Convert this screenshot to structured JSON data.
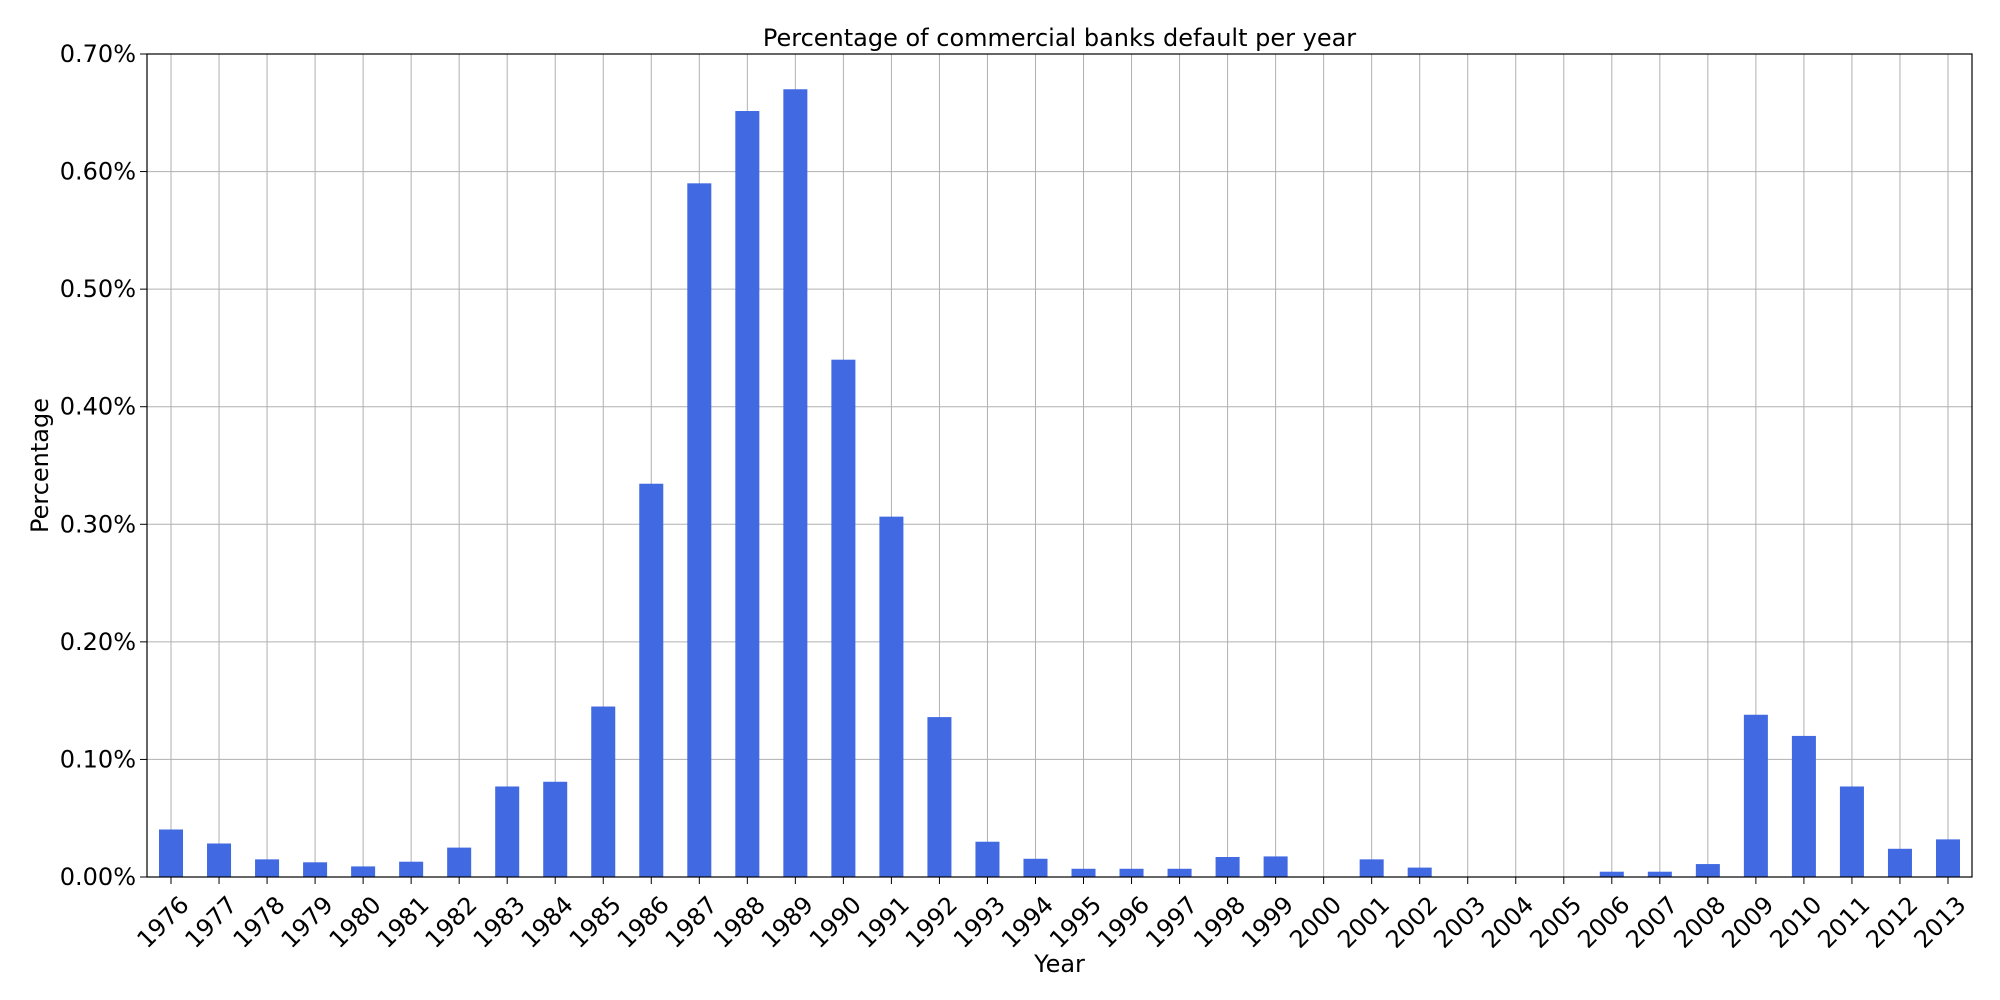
{
  "chart_data": {
    "type": "bar",
    "title": "Percentage of commercial banks default per year",
    "xlabel": "Year",
    "ylabel": "Percentage",
    "categories": [
      "1976",
      "1977",
      "1978",
      "1979",
      "1980",
      "1981",
      "1982",
      "1983",
      "1984",
      "1985",
      "1986",
      "1987",
      "1988",
      "1989",
      "1990",
      "1991",
      "1992",
      "1993",
      "1994",
      "1995",
      "1996",
      "1997",
      "1998",
      "1999",
      "2000",
      "2001",
      "2002",
      "2003",
      "2004",
      "2005",
      "2006",
      "2007",
      "2008",
      "2009",
      "2010",
      "2011",
      "2012",
      "2013"
    ],
    "values": [
      0.0404,
      0.0285,
      0.015,
      0.0125,
      0.009,
      0.013,
      0.025,
      0.077,
      0.081,
      0.145,
      0.3345,
      0.59,
      0.6515,
      0.67,
      0.44,
      0.3065,
      0.136,
      0.03,
      0.0155,
      0.007,
      0.007,
      0.007,
      0.017,
      0.0175,
      0.0,
      0.015,
      0.008,
      0.0,
      0.0,
      0.0,
      0.0045,
      0.0045,
      0.011,
      0.138,
      0.12,
      0.077,
      0.024,
      0.032
    ],
    "ylim": [
      0,
      0.7
    ],
    "yticks": [
      "0.00%",
      "0.10%",
      "0.20%",
      "0.30%",
      "0.40%",
      "0.50%",
      "0.60%",
      "0.70%"
    ],
    "grid": true,
    "bar_color": "#4169e1"
  }
}
